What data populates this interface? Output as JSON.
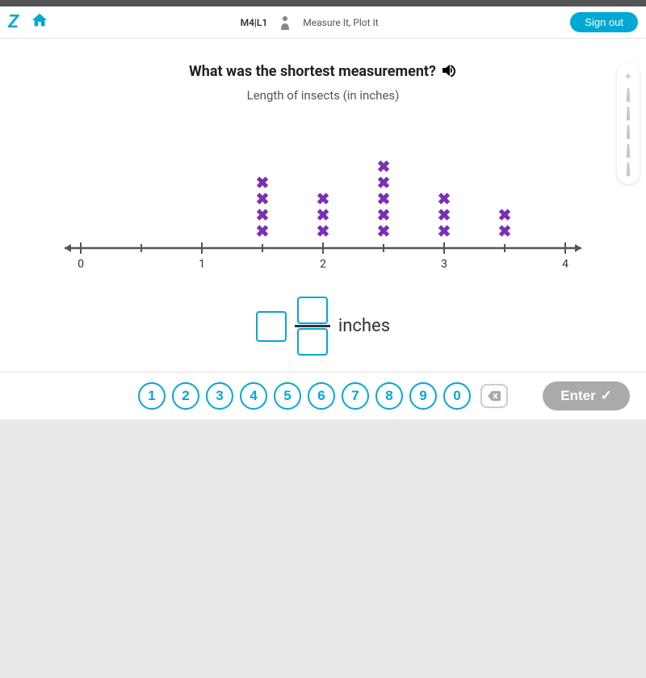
{
  "header": {
    "lesson_code": "M4|L1",
    "lesson_title": "Measure It, Plot It",
    "signout_label": "Sign out"
  },
  "question": {
    "text": "What was the shortest measurement?",
    "subtitle": "Length of insects (in inches)"
  },
  "chart": {
    "type": "dot-plot",
    "xmin": 0,
    "xmax": 4,
    "major_ticks": [
      0,
      1,
      2,
      3,
      4
    ],
    "minor_ticks": [
      0.5,
      1.5,
      2.5,
      3.5
    ],
    "data_points": [
      {
        "x": 1.5,
        "count": 4
      },
      {
        "x": 2.0,
        "count": 3
      },
      {
        "x": 2.5,
        "count": 5
      },
      {
        "x": 3.0,
        "count": 3
      },
      {
        "x": 3.5,
        "count": 2
      }
    ],
    "mark_color": "#7b2fb5",
    "axis_color": "#555555",
    "background_color": "#ffffff",
    "mark_symbol": "✖",
    "mark_fontsize": 20,
    "tick_label_fontsize": 14,
    "mark_vertical_spacing": 20
  },
  "answer": {
    "unit_label": "inches",
    "box_border_color": "#00a8d4"
  },
  "keypad": {
    "numbers": [
      "1",
      "2",
      "3",
      "4",
      "5",
      "6",
      "7",
      "8",
      "9",
      "0"
    ],
    "enter_label": "Enter",
    "button_border_color": "#00a8d4",
    "button_text_color": "#00a8d4",
    "enter_bg_color": "#aaaaaa"
  }
}
